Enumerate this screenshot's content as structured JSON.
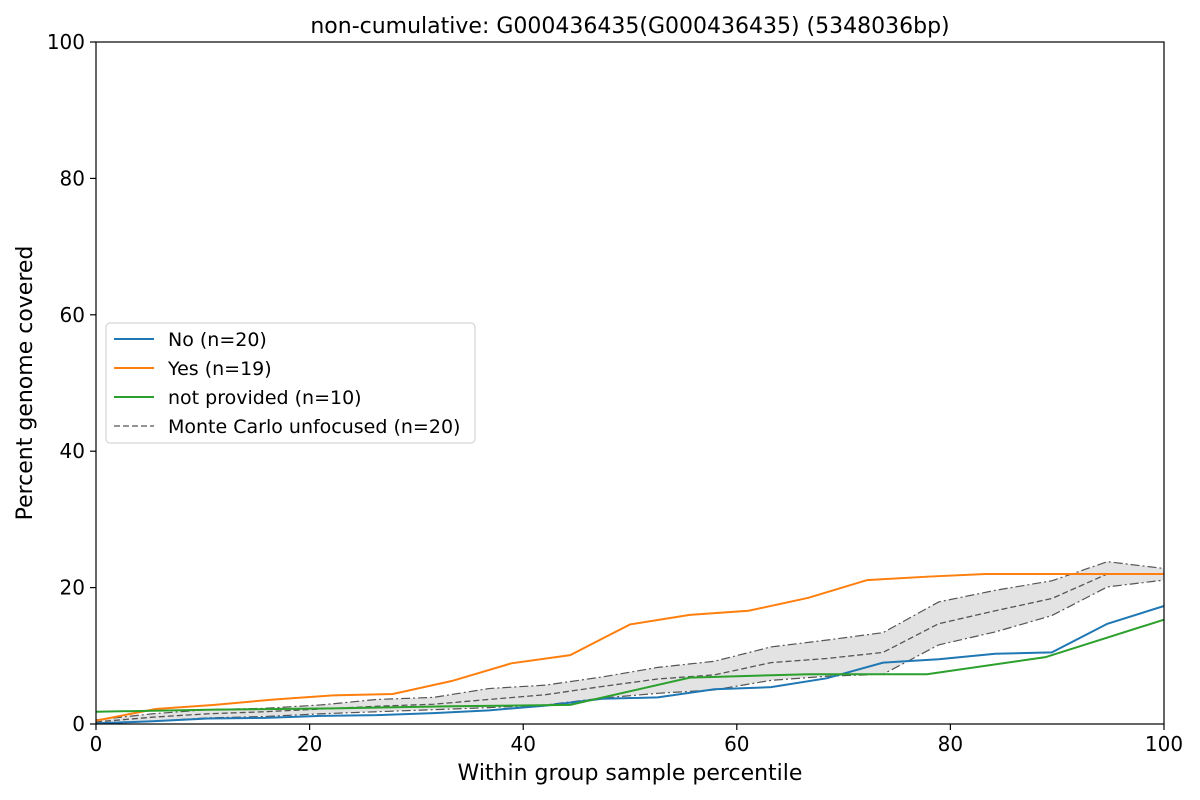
{
  "chart_data": {
    "type": "line",
    "title": "non-cumulative: G000436435(G000436435) (5348036bp)",
    "xlabel": "Within group sample percentile",
    "ylabel": "Percent genome covered",
    "xlim": [
      0,
      100
    ],
    "ylim": [
      0,
      100
    ],
    "xticks": [
      "0",
      "20",
      "40",
      "60",
      "80",
      "100"
    ],
    "yticks": [
      "0",
      "20",
      "40",
      "60",
      "80",
      "100"
    ],
    "grid": false,
    "legend_position": "center-left",
    "legend": [
      "No (n=20)",
      "Yes (n=19)",
      "not provided (n=10)",
      "Monte Carlo unfocused (n=20)"
    ],
    "series": [
      {
        "name": "No (n=20)",
        "color": "#1f77b4",
        "style": "solid",
        "x": [
          0,
          5.3,
          10.5,
          15.8,
          21.1,
          26.3,
          31.6,
          36.8,
          42.1,
          47.4,
          52.6,
          57.9,
          63.2,
          68.4,
          73.7,
          78.9,
          84.2,
          89.5,
          94.7,
          100
        ],
        "y": [
          0.1,
          0.4,
          0.8,
          0.9,
          1.2,
          1.3,
          1.6,
          2.0,
          2.7,
          3.7,
          3.9,
          5.1,
          5.4,
          6.7,
          9.0,
          9.5,
          10.3,
          10.5,
          14.7,
          17.3
        ]
      },
      {
        "name": "Yes (n=19)",
        "color": "#ff7f0e",
        "style": "solid",
        "x": [
          0,
          5.6,
          11.1,
          16.7,
          22.2,
          27.8,
          33.3,
          38.9,
          44.4,
          50.0,
          55.6,
          61.1,
          66.7,
          72.2,
          77.8,
          83.3,
          88.9,
          94.4,
          100
        ],
        "y": [
          0.5,
          2.2,
          2.8,
          3.6,
          4.2,
          4.4,
          6.3,
          8.9,
          10.1,
          14.6,
          16.0,
          16.6,
          18.5,
          21.1,
          21.6,
          22.0,
          22.0,
          22.0,
          22.0
        ]
      },
      {
        "name": "not provided (n=10)",
        "color": "#2ca02c",
        "style": "solid",
        "x": [
          0,
          11.1,
          22.2,
          33.3,
          44.4,
          55.6,
          66.7,
          77.8,
          88.9,
          100
        ],
        "y": [
          1.8,
          2.1,
          2.3,
          2.6,
          2.8,
          6.8,
          7.3,
          7.3,
          9.8,
          15.3
        ]
      },
      {
        "name": "Monte Carlo unfocused (n=20)",
        "color": "#555555",
        "style": "dashed",
        "x": [
          0,
          5.3,
          10.5,
          15.8,
          21.1,
          26.3,
          31.6,
          36.8,
          42.1,
          47.4,
          52.6,
          57.9,
          63.2,
          68.4,
          73.7,
          78.9,
          84.2,
          89.5,
          94.7,
          100
        ],
        "y": [
          0.3,
          1.0,
          1.5,
          1.8,
          2.2,
          2.6,
          2.9,
          3.6,
          4.3,
          5.5,
          6.6,
          7.2,
          9.0,
          9.6,
          10.5,
          14.7,
          16.6,
          18.4,
          22.0,
          22.0
        ]
      }
    ],
    "band": {
      "name": "Monte Carlo range",
      "fill": "#e3e3e3",
      "edge_color": "#555555",
      "x": [
        0,
        5.3,
        10.5,
        15.8,
        21.1,
        26.3,
        31.6,
        36.8,
        42.1,
        47.4,
        52.6,
        57.9,
        63.2,
        68.4,
        73.7,
        78.9,
        84.2,
        89.5,
        94.7,
        100
      ],
      "upper": [
        0.6,
        1.5,
        2.1,
        2.3,
        2.8,
        3.6,
        3.9,
        5.2,
        5.7,
        6.9,
        8.3,
        9.2,
        11.3,
        12.3,
        13.4,
        17.9,
        19.6,
        21.0,
        23.8,
        22.8
      ],
      "lower": [
        0.0,
        0.4,
        0.9,
        1.1,
        1.5,
        1.8,
        2.1,
        2.4,
        2.8,
        3.8,
        4.5,
        5.0,
        6.4,
        7.0,
        7.3,
        11.6,
        13.5,
        15.9,
        20.1,
        21.1
      ]
    }
  }
}
